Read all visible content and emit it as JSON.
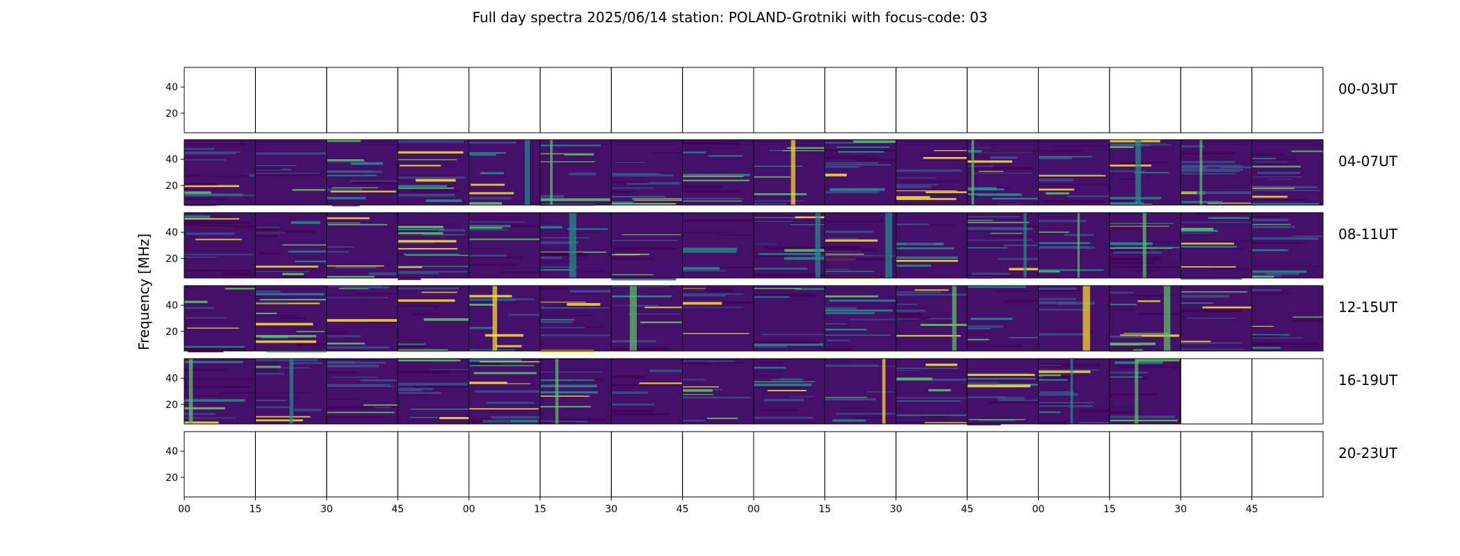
{
  "figure": {
    "title": "Full day spectra 2025/06/14 station: POLAND-Grotniki with focus-code: 03"
  },
  "chart_data": {
    "type": "heatmap",
    "title": "Full day spectra 2025/06/14 station: POLAND-Grotniki with focus-code: 03",
    "ylabel": "Frequency [MHz]",
    "xlabel": "",
    "ylim": [
      5,
      55
    ],
    "yticks": [
      "20",
      "40"
    ],
    "x_tick_labels": [
      "00",
      "15",
      "30",
      "45",
      "00",
      "15",
      "30",
      "45",
      "00",
      "15",
      "30",
      "45",
      "00",
      "15",
      "30",
      "45"
    ],
    "panels_per_row": 16,
    "rows": [
      {
        "label": "00-03UT",
        "filled": 0
      },
      {
        "label": "04-07UT",
        "filled": 16
      },
      {
        "label": "08-11UT",
        "filled": 16
      },
      {
        "label": "12-15UT",
        "filled": 16
      },
      {
        "label": "16-19UT",
        "filled": 14
      },
      {
        "label": "20-23UT",
        "filled": 0
      }
    ],
    "colormap": [
      "#440154",
      "#3b528b",
      "#21918c",
      "#5ec962",
      "#fde725"
    ],
    "grid": false
  }
}
